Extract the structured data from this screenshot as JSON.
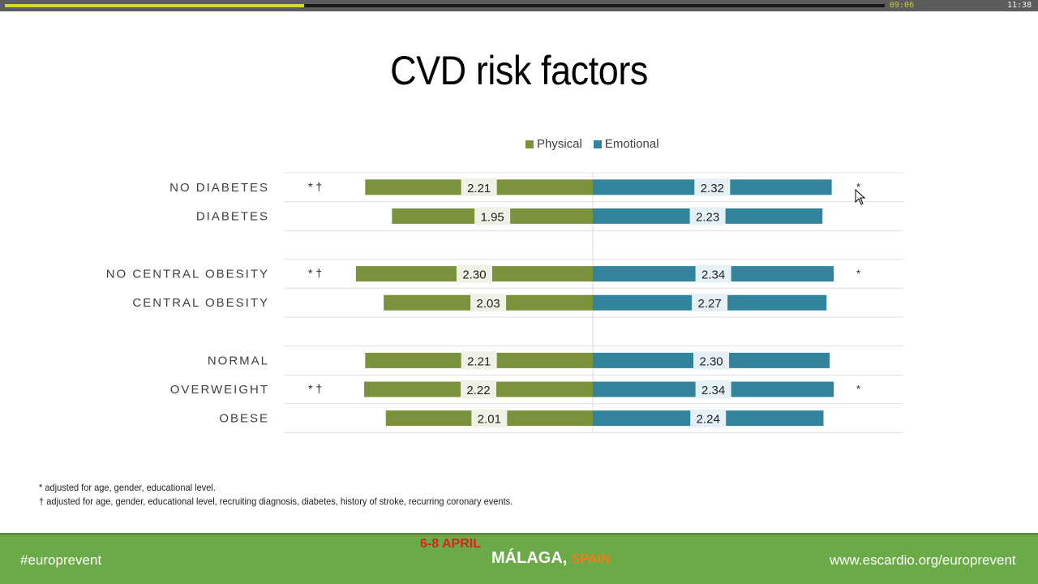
{
  "player": {
    "elapsed": "09:06",
    "total": "11:38",
    "progress": 0.34
  },
  "slide": {
    "title": "CVD risk factors",
    "footnotes": [
      "* adjusted for age, gender, educational level.",
      "† adjusted for age, gender, educational level, recruiting diagnosis, diabetes, history of stroke, recurring coronary events."
    ]
  },
  "chart_data": {
    "type": "bar",
    "orientation": "horizontal-diverging",
    "legend": [
      {
        "name": "Physical",
        "color": "#7a923c"
      },
      {
        "name": "Emotional",
        "color": "#31849b"
      }
    ],
    "groups": [
      {
        "rows": [
          {
            "label": "NO DIABETES",
            "physical": 2.21,
            "emotional": 2.32,
            "left_mark": "* †",
            "right_mark": "*"
          },
          {
            "label": "DIABETES",
            "physical": 1.95,
            "emotional": 2.23,
            "left_mark": "",
            "right_mark": ""
          }
        ]
      },
      {
        "rows": [
          {
            "label": "NO CENTRAL OBESITY",
            "physical": 2.3,
            "emotional": 2.34,
            "left_mark": "* †",
            "right_mark": "*"
          },
          {
            "label": "CENTRAL OBESITY",
            "physical": 2.03,
            "emotional": 2.27,
            "left_mark": "",
            "right_mark": ""
          }
        ]
      },
      {
        "rows": [
          {
            "label": "NORMAL",
            "physical": 2.21,
            "emotional": 2.3,
            "left_mark": "",
            "right_mark": ""
          },
          {
            "label": "OVERWEIGHT",
            "physical": 2.22,
            "emotional": 2.34,
            "left_mark": "* †",
            "right_mark": "*"
          },
          {
            "label": "OBESE",
            "physical": 2.01,
            "emotional": 2.24,
            "left_mark": "",
            "right_mark": ""
          }
        ]
      }
    ]
  },
  "footer": {
    "hashtag": "#europrevent",
    "dates": "6-8 APRIL",
    "city": "MÁLAGA,",
    "country": "SPAIN",
    "url": "www.escardio.org/europrevent"
  }
}
